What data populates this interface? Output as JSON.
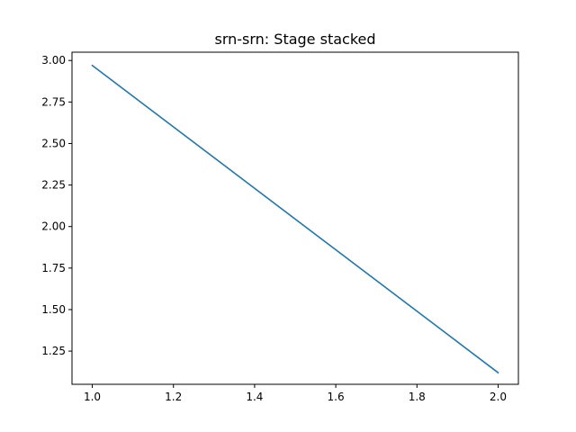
{
  "chart_data": {
    "type": "line",
    "title": "srn-srn: Stage stacked",
    "xlabel": "",
    "ylabel": "",
    "xlim": [
      0.95,
      2.05
    ],
    "ylim": [
      1.05,
      3.05
    ],
    "x_ticks": [
      1.0,
      1.2,
      1.4,
      1.6,
      1.8,
      2.0
    ],
    "x_tick_labels": [
      "1.0",
      "1.2",
      "1.4",
      "1.6",
      "1.8",
      "2.0"
    ],
    "y_ticks": [
      1.25,
      1.5,
      1.75,
      2.0,
      2.25,
      2.5,
      2.75,
      3.0
    ],
    "y_tick_labels": [
      "1.25",
      "1.50",
      "1.75",
      "2.00",
      "2.25",
      "2.50",
      "2.75",
      "3.00"
    ],
    "grid": false,
    "series": [
      {
        "x": [
          1.0,
          2.0
        ],
        "y": [
          2.97,
          1.12
        ],
        "color": "#1f77b4"
      }
    ]
  }
}
